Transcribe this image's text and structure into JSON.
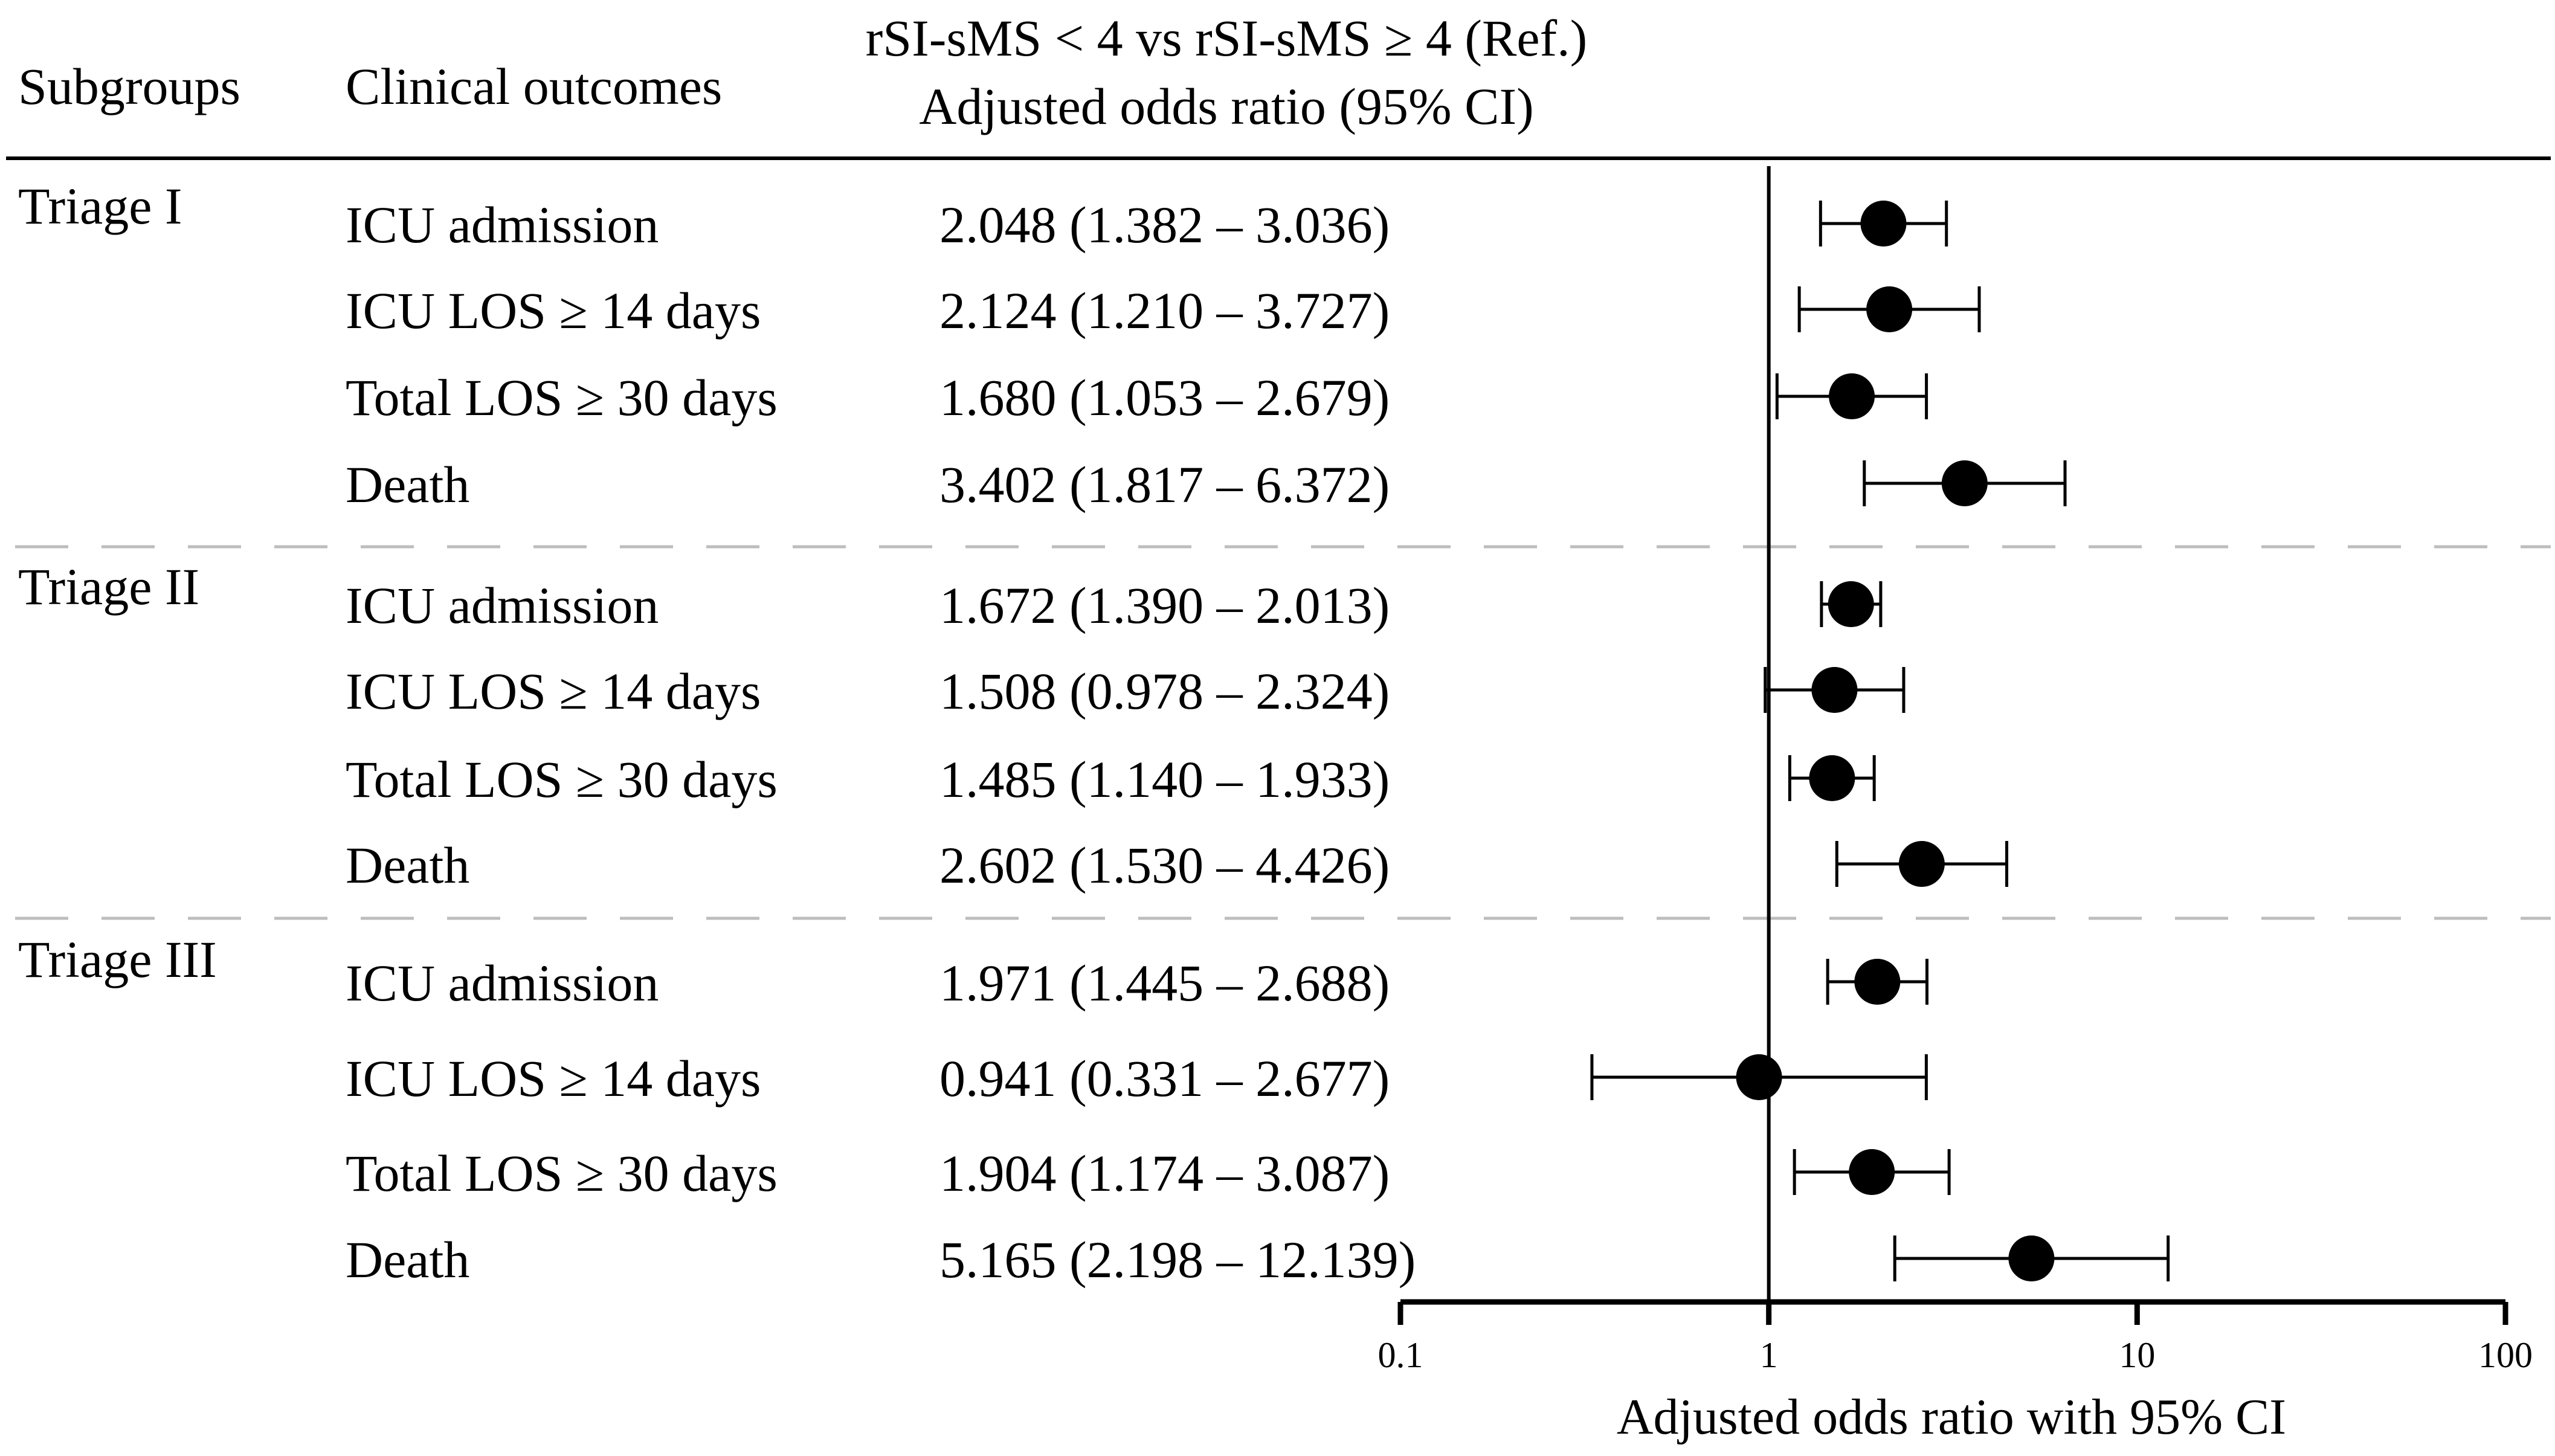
{
  "chart_data": {
    "type": "forest",
    "headers": {
      "subgroups": "Subgroups",
      "outcomes": "Clinical outcomes",
      "comparison": "rSI-sMS < 4 vs rSI-sMS ≥ 4 (Ref.)",
      "estimate": "Adjusted odds ratio (95% CI)"
    },
    "x_scale": "log10",
    "xlim": [
      0.1,
      100
    ],
    "ticks": [
      0.1,
      1,
      10,
      100
    ],
    "tick_labels": [
      "0.1",
      "1",
      "10",
      "100"
    ],
    "reference_line": 1,
    "xlabel": "Adjusted odds ratio with 95% CI",
    "groups": [
      {
        "name": "Triage I",
        "rows": [
          {
            "outcome": "ICU admission",
            "label": "2.048 (1.382 – 3.036)",
            "or": 2.048,
            "lo": 1.382,
            "hi": 3.036
          },
          {
            "outcome": "ICU LOS ≥ 14 days",
            "label": "2.124 (1.210 – 3.727)",
            "or": 2.124,
            "lo": 1.21,
            "hi": 3.727
          },
          {
            "outcome": "Total LOS ≥ 30 days",
            "label": "1.680 (1.053 – 2.679)",
            "or": 1.68,
            "lo": 1.053,
            "hi": 2.679
          },
          {
            "outcome": "Death",
            "label": "3.402 (1.817 – 6.372)",
            "or": 3.402,
            "lo": 1.817,
            "hi": 6.372
          }
        ]
      },
      {
        "name": "Triage II",
        "rows": [
          {
            "outcome": "ICU admission",
            "label": "1.672 (1.390 – 2.013)",
            "or": 1.672,
            "lo": 1.39,
            "hi": 2.013
          },
          {
            "outcome": "ICU LOS ≥ 14 days",
            "label": "1.508 (0.978 – 2.324)",
            "or": 1.508,
            "lo": 0.978,
            "hi": 2.324
          },
          {
            "outcome": "Total LOS ≥ 30 days",
            "label": "1.485 (1.140 – 1.933)",
            "or": 1.485,
            "lo": 1.14,
            "hi": 1.933
          },
          {
            "outcome": "Death",
            "label": "2.602 (1.530 – 4.426)",
            "or": 2.602,
            "lo": 1.53,
            "hi": 4.426
          }
        ]
      },
      {
        "name": "Triage III",
        "rows": [
          {
            "outcome": "ICU admission",
            "label": "1.971 (1.445 – 2.688)",
            "or": 1.971,
            "lo": 1.445,
            "hi": 2.688
          },
          {
            "outcome": "ICU LOS ≥ 14 days",
            "label": "0.941 (0.331 – 2.677)",
            "or": 0.941,
            "lo": 0.331,
            "hi": 2.677
          },
          {
            "outcome": "Total LOS ≥ 30 days",
            "label": "1.904 (1.174 – 3.087)",
            "or": 1.904,
            "lo": 1.174,
            "hi": 3.087
          },
          {
            "outcome": "Death",
            "label": "5.165 (2.198 – 12.139)",
            "or": 5.165,
            "lo": 2.198,
            "hi": 12.139
          }
        ]
      }
    ]
  }
}
